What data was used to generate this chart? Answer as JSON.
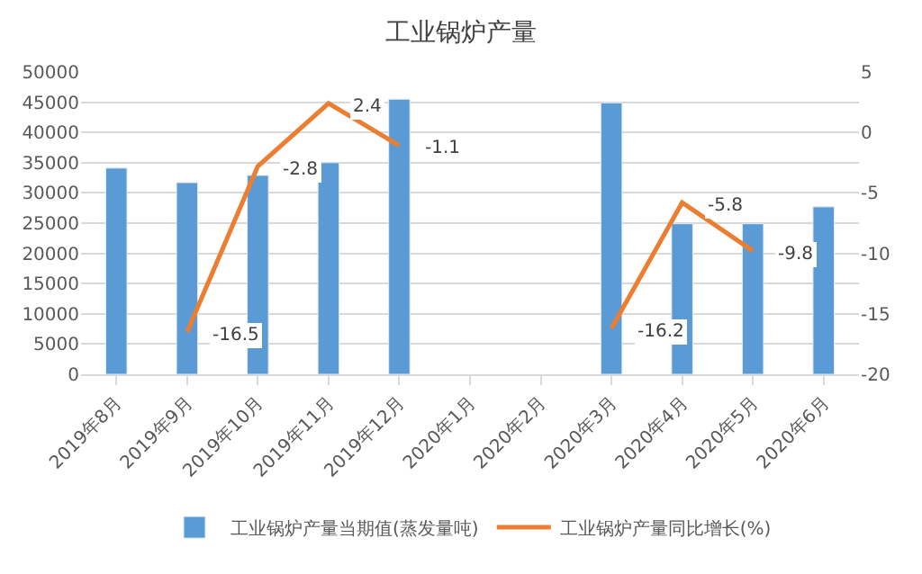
{
  "chart_data": {
    "type": "bar",
    "title": "工业锅炉产量",
    "categories": [
      "2019年8月",
      "2019年9月",
      "2019年10月",
      "2019年11月",
      "2019年12月",
      "2020年1月",
      "2020年2月",
      "2020年3月",
      "2020年4月",
      "2020年5月",
      "2020年6月"
    ],
    "series": [
      {
        "name": "工业锅炉产量当期值(蒸发量吨)",
        "color": "#5b9bd5",
        "values": [
          34100,
          31700,
          32900,
          35000,
          45500,
          null,
          null,
          44900,
          24900,
          24900,
          27700
        ]
      },
      {
        "name": "工业锅炉产量同比增长(%)",
        "type": "line",
        "axis": "y2",
        "color": "#ed7d31",
        "values": [
          null,
          -16.5,
          -2.8,
          2.4,
          -1.1,
          null,
          null,
          -16.2,
          -5.8,
          -9.8,
          null
        ],
        "value_labels": [
          null,
          "-16.5",
          "-2.8",
          "2.4",
          "-1.1",
          null,
          null,
          "-16.2",
          "-5.8",
          "-9.8",
          null
        ]
      }
    ],
    "ylim": [
      0,
      50000
    ],
    "yticks": [
      0,
      5000,
      10000,
      15000,
      20000,
      25000,
      30000,
      35000,
      40000,
      45000,
      50000
    ],
    "y2lim": [
      -20,
      5
    ],
    "y2ticks": [
      -20,
      -15,
      -10,
      -5,
      0,
      5
    ],
    "grid": "y",
    "legend": "bottom"
  }
}
